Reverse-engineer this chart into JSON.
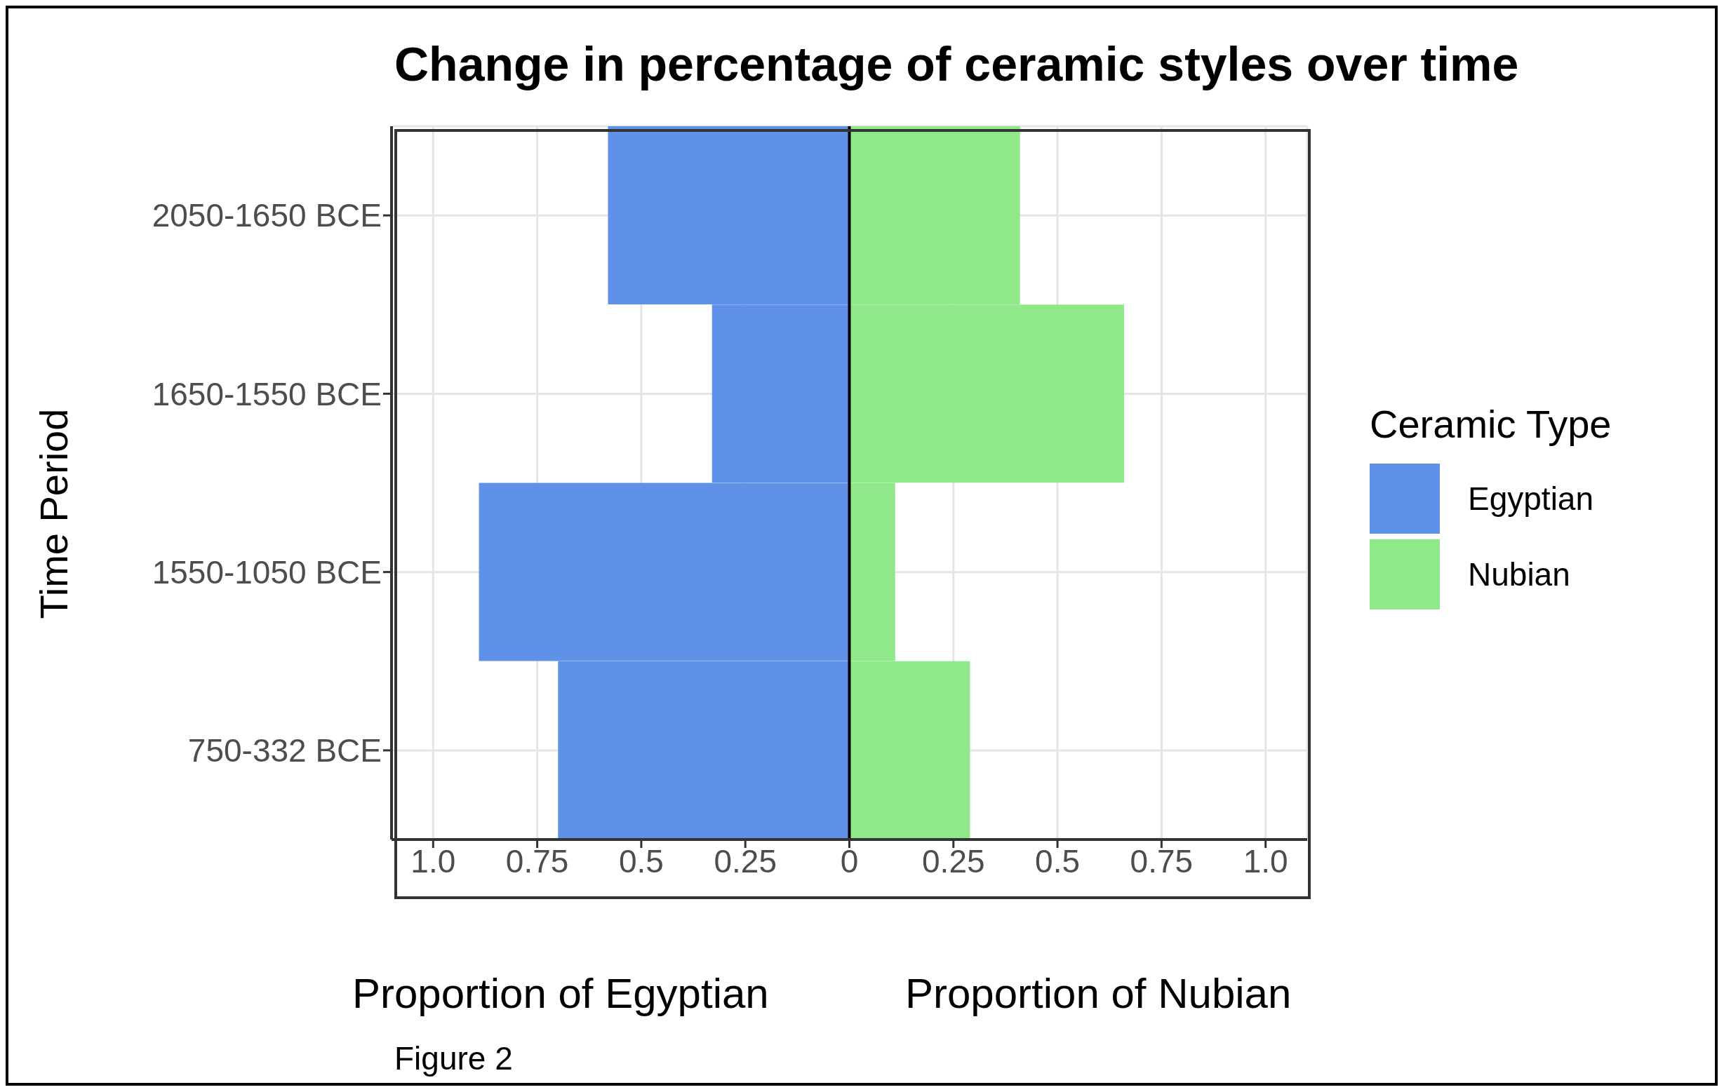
{
  "chart_data": {
    "type": "bar",
    "orientation": "horizontal",
    "stacked": true,
    "title": "Change in percentage of ceramic styles over time",
    "ylabel": "Time Period",
    "legend_title": "Ceramic Type",
    "categories": [
      "2050-1650 BCE",
      "1650-1550 BCE",
      "1550-1050 BCE",
      "750-332 BCE"
    ],
    "series": [
      {
        "name": "Egyptian",
        "color": "#6091e8",
        "values": [
          -0.58,
          -0.33,
          -0.89,
          -0.7
        ]
      },
      {
        "name": "Nubian",
        "color": "#8fe98a",
        "values": [
          0.41,
          0.66,
          0.11,
          0.29
        ]
      }
    ],
    "xlim": [
      -1.1,
      1.1
    ],
    "xticks": [
      {
        "value": -1,
        "label": "1.0"
      },
      {
        "value": -0.75,
        "label": "0.75"
      },
      {
        "value": -0.5,
        "label": "0.5"
      },
      {
        "value": -0.25,
        "label": "0.25"
      },
      0,
      {
        "value": 0.25,
        "label": "0.25"
      },
      {
        "value": 0.5,
        "label": "0.5"
      },
      {
        "value": 0.75,
        "label": "0.75"
      },
      {
        "value": 1,
        "label": "1.0"
      }
    ],
    "ref_lines": [
      {
        "axis": "x",
        "value": 0,
        "color": "#000000"
      }
    ],
    "annotations": [
      "Proportion of Egyptian",
      "Proportion of Nubian",
      "Figure 2"
    ],
    "grid": true,
    "legend": "right"
  }
}
